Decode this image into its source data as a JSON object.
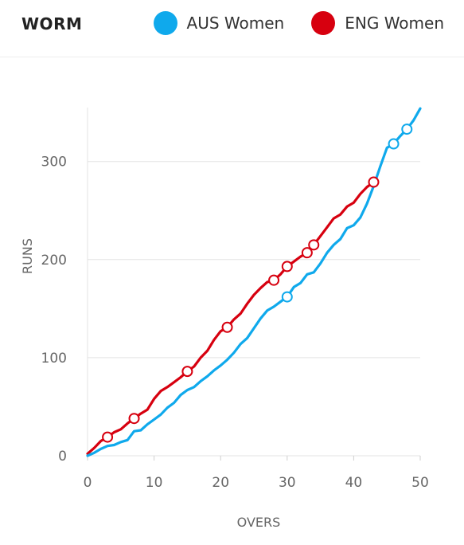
{
  "header": {
    "title": "WORM"
  },
  "legend": [
    {
      "name": "AUS Women",
      "color": "#0fa9ec"
    },
    {
      "name": "ENG Women",
      "color": "#d7000f"
    }
  ],
  "chart_data": {
    "type": "line",
    "title": "",
    "xlabel": "OVERS",
    "ylabel": "RUNS",
    "xlim": [
      0,
      50
    ],
    "ylim": [
      0,
      355
    ],
    "xticks": [
      0,
      10,
      20,
      30,
      40,
      50
    ],
    "yticks": [
      0,
      100,
      200,
      300
    ],
    "grid": "horizontal",
    "legend_position": "top-right",
    "series": [
      {
        "name": "AUS Women",
        "color": "#0fa9ec",
        "x": [
          0,
          1,
          2,
          3,
          4,
          5,
          6,
          7,
          8,
          9,
          10,
          11,
          12,
          13,
          14,
          15,
          16,
          17,
          18,
          19,
          20,
          21,
          22,
          23,
          24,
          25,
          26,
          27,
          28,
          29,
          30,
          31,
          32,
          33,
          34,
          35,
          36,
          37,
          38,
          39,
          40,
          41,
          42,
          43,
          44,
          45,
          46,
          47,
          48,
          49,
          50
        ],
        "y": [
          0,
          3,
          7,
          10,
          11,
          14,
          16,
          25,
          26,
          32,
          37,
          42,
          49,
          54,
          62,
          67,
          70,
          76,
          81,
          87,
          92,
          98,
          105,
          114,
          120,
          130,
          140,
          148,
          152,
          157,
          162,
          172,
          176,
          185,
          187,
          196,
          207,
          215,
          221,
          232,
          235,
          243,
          257,
          275,
          295,
          314,
          318,
          326,
          333,
          342,
          354
        ],
        "wickets_at_overs": [
          30,
          46,
          48
        ],
        "wickets_runs": [
          162,
          318,
          333
        ]
      },
      {
        "name": "ENG Women",
        "color": "#d7000f",
        "x": [
          0,
          1,
          2,
          3,
          4,
          5,
          6,
          7,
          8,
          9,
          10,
          11,
          12,
          13,
          14,
          15,
          16,
          17,
          18,
          19,
          20,
          21,
          22,
          23,
          24,
          25,
          26,
          27,
          28,
          29,
          30,
          31,
          32,
          33,
          34,
          35,
          36,
          37,
          38,
          39,
          40,
          41,
          42,
          43
        ],
        "y": [
          2,
          8,
          15,
          19,
          24,
          27,
          33,
          38,
          43,
          47,
          58,
          66,
          70,
          75,
          80,
          86,
          91,
          100,
          107,
          118,
          127,
          131,
          139,
          145,
          155,
          164,
          171,
          177,
          179,
          185,
          193,
          198,
          203,
          207,
          215,
          224,
          233,
          242,
          246,
          254,
          258,
          267,
          274,
          279
        ],
        "wickets_at_overs": [
          3,
          7,
          15,
          21,
          28,
          30,
          33,
          34,
          43
        ],
        "wickets_runs": [
          19,
          38,
          86,
          131,
          179,
          193,
          207,
          215,
          279
        ]
      }
    ]
  }
}
